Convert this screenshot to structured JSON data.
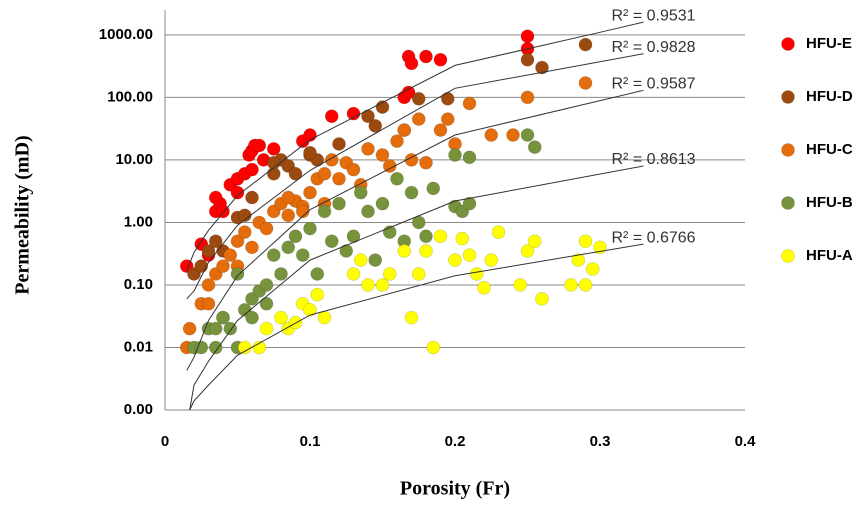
{
  "chart_data": {
    "type": "scatter",
    "x_label": "Porosity (Fr)",
    "y_label": "Permeability (mD)",
    "xlim": [
      0,
      0.4
    ],
    "xticks": [
      0,
      0.1,
      0.2,
      0.3,
      0.4
    ],
    "ylim": [
      0.001,
      2500
    ],
    "log_y": true,
    "grid": true,
    "yticks": [
      {
        "value": 0.001,
        "label": "0.00"
      },
      {
        "value": 0.01,
        "label": "0.01"
      },
      {
        "value": 0.1,
        "label": "0.10"
      },
      {
        "value": 1,
        "label": "1.00"
      },
      {
        "value": 10,
        "label": "10.00"
      },
      {
        "value": 100,
        "label": "100.00"
      },
      {
        "value": 1000,
        "label": "1000.00"
      }
    ],
    "legend": "right",
    "series": [
      {
        "name": "HFU-E",
        "color": "#ff0000",
        "x": [
          0.015,
          0.025,
          0.03,
          0.035,
          0.038,
          0.04,
          0.045,
          0.05,
          0.055,
          0.058,
          0.06,
          0.062,
          0.065,
          0.068,
          0.075,
          0.095,
          0.1,
          0.115,
          0.13,
          0.165,
          0.168,
          0.168,
          0.17,
          0.18,
          0.19,
          0.25,
          0.25,
          0.035,
          0.05,
          0.06
        ],
        "values": [
          0.2,
          0.45,
          0.3,
          1.5,
          2,
          1.5,
          4,
          5,
          6,
          12,
          14,
          17,
          17,
          10,
          15,
          20,
          25,
          50,
          55,
          100,
          120,
          450,
          350,
          450,
          400,
          950,
          600,
          2.5,
          3,
          7
        ]
      },
      {
        "name": "HFU-D",
        "color": "#9c4a0f",
        "x": [
          0.02,
          0.025,
          0.03,
          0.035,
          0.04,
          0.05,
          0.055,
          0.06,
          0.075,
          0.08,
          0.085,
          0.09,
          0.1,
          0.105,
          0.12,
          0.14,
          0.145,
          0.15,
          0.165,
          0.175,
          0.195,
          0.25,
          0.29,
          0.26,
          0.1,
          0.075
        ],
        "values": [
          0.15,
          0.2,
          0.35,
          0.5,
          0.35,
          1.2,
          1.3,
          2.5,
          6,
          10,
          8,
          6,
          12,
          10,
          18,
          50,
          35,
          70,
          30,
          95,
          95,
          400,
          700,
          300,
          13,
          9
        ]
      },
      {
        "name": "HFU-C",
        "color": "#e46c0a",
        "x": [
          0.015,
          0.017,
          0.025,
          0.03,
          0.035,
          0.04,
          0.045,
          0.05,
          0.055,
          0.06,
          0.065,
          0.07,
          0.075,
          0.08,
          0.085,
          0.09,
          0.095,
          0.1,
          0.105,
          0.11,
          0.115,
          0.12,
          0.125,
          0.13,
          0.135,
          0.14,
          0.15,
          0.155,
          0.16,
          0.165,
          0.17,
          0.175,
          0.18,
          0.19,
          0.195,
          0.2,
          0.21,
          0.225,
          0.24,
          0.25,
          0.29,
          0.05,
          0.03,
          0.085,
          0.095,
          0.11
        ],
        "values": [
          0.01,
          0.02,
          0.05,
          0.1,
          0.15,
          0.2,
          0.3,
          0.5,
          0.7,
          0.4,
          1,
          0.8,
          1.5,
          2,
          1.3,
          2.2,
          1.8,
          3,
          5,
          6,
          10,
          5,
          9,
          7,
          4,
          15,
          12,
          8,
          20,
          30,
          10,
          45,
          9,
          30,
          45,
          18,
          80,
          25,
          25,
          100,
          170,
          0.2,
          0.05,
          2.5,
          1.5,
          2
        ]
      },
      {
        "name": "HFU-B",
        "color": "#77933c",
        "x": [
          0.02,
          0.025,
          0.03,
          0.035,
          0.04,
          0.045,
          0.05,
          0.05,
          0.055,
          0.06,
          0.065,
          0.07,
          0.075,
          0.08,
          0.085,
          0.09,
          0.095,
          0.1,
          0.105,
          0.11,
          0.115,
          0.12,
          0.125,
          0.13,
          0.135,
          0.14,
          0.145,
          0.15,
          0.155,
          0.16,
          0.165,
          0.17,
          0.175,
          0.18,
          0.185,
          0.2,
          0.2,
          0.205,
          0.21,
          0.21,
          0.25,
          0.255,
          0.04,
          0.035,
          0.06,
          0.07
        ],
        "values": [
          0.01,
          0.01,
          0.02,
          0.01,
          0.03,
          0.02,
          0.01,
          0.15,
          0.04,
          0.06,
          0.08,
          0.1,
          0.3,
          0.15,
          0.4,
          0.6,
          0.3,
          0.8,
          0.15,
          1.5,
          0.5,
          2,
          0.35,
          0.6,
          3,
          1.5,
          0.25,
          2,
          0.7,
          5,
          0.5,
          3,
          1,
          0.6,
          3.5,
          12,
          1.8,
          1.5,
          11,
          2,
          25,
          16,
          0.03,
          0.02,
          0.03,
          0.05
        ]
      },
      {
        "name": "HFU-A",
        "color": "#ffff00",
        "x": [
          0.055,
          0.065,
          0.07,
          0.08,
          0.085,
          0.09,
          0.095,
          0.1,
          0.105,
          0.11,
          0.13,
          0.135,
          0.14,
          0.15,
          0.155,
          0.165,
          0.17,
          0.175,
          0.18,
          0.185,
          0.19,
          0.2,
          0.205,
          0.21,
          0.215,
          0.22,
          0.225,
          0.23,
          0.245,
          0.25,
          0.255,
          0.26,
          0.28,
          0.285,
          0.29,
          0.295,
          0.3,
          0.29
        ],
        "values": [
          0.01,
          0.01,
          0.02,
          0.03,
          0.02,
          0.025,
          0.05,
          0.04,
          0.07,
          0.03,
          0.15,
          0.25,
          0.1,
          0.1,
          0.15,
          0.35,
          0.03,
          0.15,
          0.35,
          0.01,
          0.6,
          0.25,
          0.55,
          0.3,
          0.15,
          0.09,
          0.25,
          0.7,
          0.1,
          0.35,
          0.5,
          0.06,
          0.1,
          0.25,
          0.5,
          0.18,
          0.4,
          0.1
        ]
      }
    ],
    "trendlines": [
      {
        "label": "R² = 0.9531",
        "x": [
          0.015,
          0.02,
          0.03,
          0.05,
          0.1,
          0.2,
          0.3,
          0.33
        ],
        "values": [
          0.17,
          0.33,
          0.75,
          2.7,
          21,
          325,
          1100,
          1600
        ]
      },
      {
        "label": "R² = 0.9828",
        "x": [
          0.015,
          0.02,
          0.03,
          0.05,
          0.1,
          0.2,
          0.33
        ],
        "values": [
          0.06,
          0.08,
          0.23,
          0.9,
          6.8,
          140,
          500
        ]
      },
      {
        "label": "R² = 0.9587",
        "x": [
          0.015,
          0.02,
          0.03,
          0.05,
          0.1,
          0.2,
          0.33
        ],
        "values": [
          0.0043,
          0.007,
          0.027,
          0.14,
          1.6,
          25,
          130
        ]
      },
      {
        "label": "R² = 0.8613",
        "x": [
          0.017,
          0.02,
          0.03,
          0.05,
          0.1,
          0.2,
          0.33
        ],
        "values": [
          0.001,
          0.0025,
          0.006,
          0.027,
          0.25,
          2.2,
          8
        ]
      },
      {
        "label": "R² = 0.6766",
        "x": [
          0.017,
          0.02,
          0.03,
          0.05,
          0.1,
          0.2,
          0.33
        ],
        "values": [
          0.001,
          0.0014,
          0.0025,
          0.0075,
          0.033,
          0.14,
          0.45
        ]
      }
    ]
  }
}
